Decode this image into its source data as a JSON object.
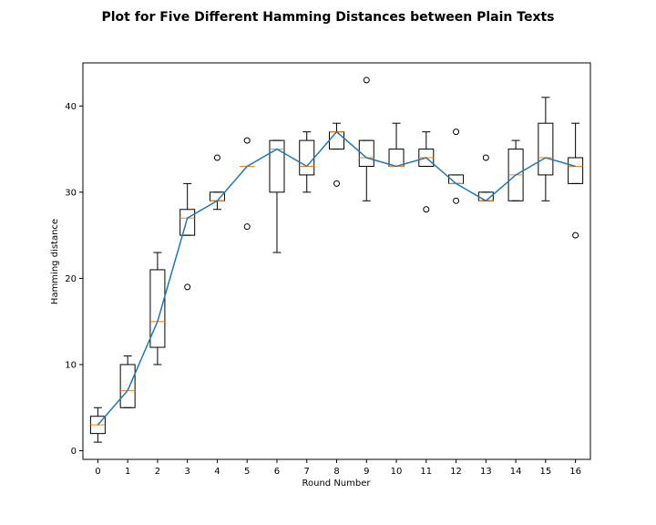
{
  "chart_data": {
    "type": "box",
    "title": "Plot for Five Different Hamming Distances between Plain Texts",
    "xlabel": "Round Number",
    "ylabel": "Hamming distance",
    "categories": [
      "0",
      "1",
      "2",
      "3",
      "4",
      "5",
      "6",
      "7",
      "8",
      "9",
      "10",
      "11",
      "12",
      "13",
      "14",
      "15",
      "16"
    ],
    "xlim": [
      -0.5,
      16.5
    ],
    "ylim": [
      -1,
      45
    ],
    "yticks": [
      0,
      10,
      20,
      30,
      40
    ],
    "grid": false,
    "boxes": [
      {
        "x": 0,
        "whisker_low": 1,
        "q1": 2,
        "median": 3,
        "q3": 4,
        "whisker_high": 5,
        "fliers": []
      },
      {
        "x": 1,
        "whisker_low": 5,
        "q1": 5,
        "median": 7,
        "q3": 10,
        "whisker_high": 11,
        "fliers": []
      },
      {
        "x": 2,
        "whisker_low": 10,
        "q1": 12,
        "median": 15,
        "q3": 21,
        "whisker_high": 23,
        "fliers": []
      },
      {
        "x": 3,
        "whisker_low": 25,
        "q1": 25,
        "median": 27,
        "q3": 28,
        "whisker_high": 31,
        "fliers": [
          19
        ]
      },
      {
        "x": 4,
        "whisker_low": 28,
        "q1": 29,
        "median": 29,
        "q3": 30,
        "whisker_high": 30,
        "fliers": [
          34
        ]
      },
      {
        "x": 5,
        "whisker_low": 33,
        "q1": 33,
        "median": 33,
        "q3": 33,
        "whisker_high": 33,
        "fliers": [
          36,
          26
        ]
      },
      {
        "x": 6,
        "whisker_low": 23,
        "q1": 30,
        "median": 35,
        "q3": 36,
        "whisker_high": 36,
        "fliers": []
      },
      {
        "x": 7,
        "whisker_low": 30,
        "q1": 32,
        "median": 33,
        "q3": 36,
        "whisker_high": 37,
        "fliers": []
      },
      {
        "x": 8,
        "whisker_low": 35,
        "q1": 35,
        "median": 37,
        "q3": 37,
        "whisker_high": 38,
        "fliers": [
          31
        ]
      },
      {
        "x": 9,
        "whisker_low": 29,
        "q1": 33,
        "median": 34,
        "q3": 36,
        "whisker_high": 36,
        "fliers": [
          43
        ]
      },
      {
        "x": 10,
        "whisker_low": 33,
        "q1": 33,
        "median": 33,
        "q3": 35,
        "whisker_high": 38,
        "fliers": []
      },
      {
        "x": 11,
        "whisker_low": 33,
        "q1": 33,
        "median": 34,
        "q3": 35,
        "whisker_high": 37,
        "fliers": [
          28
        ]
      },
      {
        "x": 12,
        "whisker_low": 31,
        "q1": 31,
        "median": 31,
        "q3": 32,
        "whisker_high": 32,
        "fliers": [
          37,
          29
        ]
      },
      {
        "x": 13,
        "whisker_low": 29,
        "q1": 29,
        "median": 29,
        "q3": 30,
        "whisker_high": 30,
        "fliers": [
          34
        ]
      },
      {
        "x": 14,
        "whisker_low": 29,
        "q1": 29,
        "median": 32,
        "q3": 35,
        "whisker_high": 36,
        "fliers": []
      },
      {
        "x": 15,
        "whisker_low": 29,
        "q1": 32,
        "median": 34,
        "q3": 38,
        "whisker_high": 41,
        "fliers": []
      },
      {
        "x": 16,
        "whisker_low": 31,
        "q1": 31,
        "median": 33,
        "q3": 34,
        "whisker_high": 38,
        "fliers": [
          25
        ]
      }
    ],
    "series": [
      {
        "type": "line",
        "color": "#1f77b4",
        "values": [
          3,
          7,
          15,
          27,
          29,
          33,
          35,
          33,
          37,
          34,
          33,
          34,
          31,
          29,
          32,
          34,
          33
        ]
      }
    ],
    "colors": {
      "box": "#000000",
      "median": "#ff7f0e",
      "line": "#1f77b4"
    }
  }
}
